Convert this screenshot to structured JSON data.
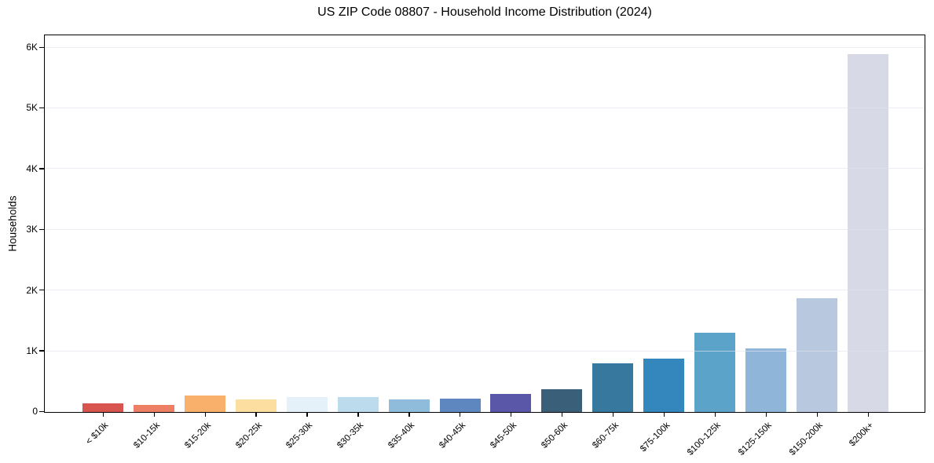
{
  "chart_data": {
    "type": "bar",
    "title": "US ZIP Code 08807 - Household Income Distribution (2024)",
    "ylabel": "Households",
    "xlabel": "",
    "categories": [
      "< $10k",
      "$10-15k",
      "$15-20k",
      "$20-25k",
      "$25-30k",
      "$30-35k",
      "$35-40k",
      "$40-45k",
      "$45-50k",
      "$50-60k",
      "$60-75k",
      "$75-100k",
      "$100-125k",
      "$125-150k",
      "$150-200k",
      "$200k+"
    ],
    "values": [
      140,
      115,
      270,
      205,
      240,
      250,
      205,
      220,
      300,
      375,
      800,
      880,
      1300,
      1050,
      1870,
      5890
    ],
    "bar_colors": [
      "#d8544f",
      "#ed8064",
      "#f9b06a",
      "#fcdfa0",
      "#e4f1f8",
      "#bcdcee",
      "#90bcdb",
      "#5e87c0",
      "#5a57a8",
      "#3a5f78",
      "#37789f",
      "#3387bd",
      "#5ba3c9",
      "#8fb6d9",
      "#b8c8de",
      "#d7d9e6"
    ],
    "yticks": {
      "values": [
        0,
        1000,
        2000,
        3000,
        4000,
        5000,
        6000
      ],
      "labels": [
        "0",
        "1K",
        "2K",
        "3K",
        "4K",
        "5K",
        "6K"
      ]
    },
    "ylim": [
      0,
      6190
    ],
    "x_tick_rotation": 45,
    "grid": "horizontal",
    "legend": "none",
    "background_color": "#ffffff",
    "axis_color": "#000000",
    "gridline_color": "#e7e8f2"
  }
}
